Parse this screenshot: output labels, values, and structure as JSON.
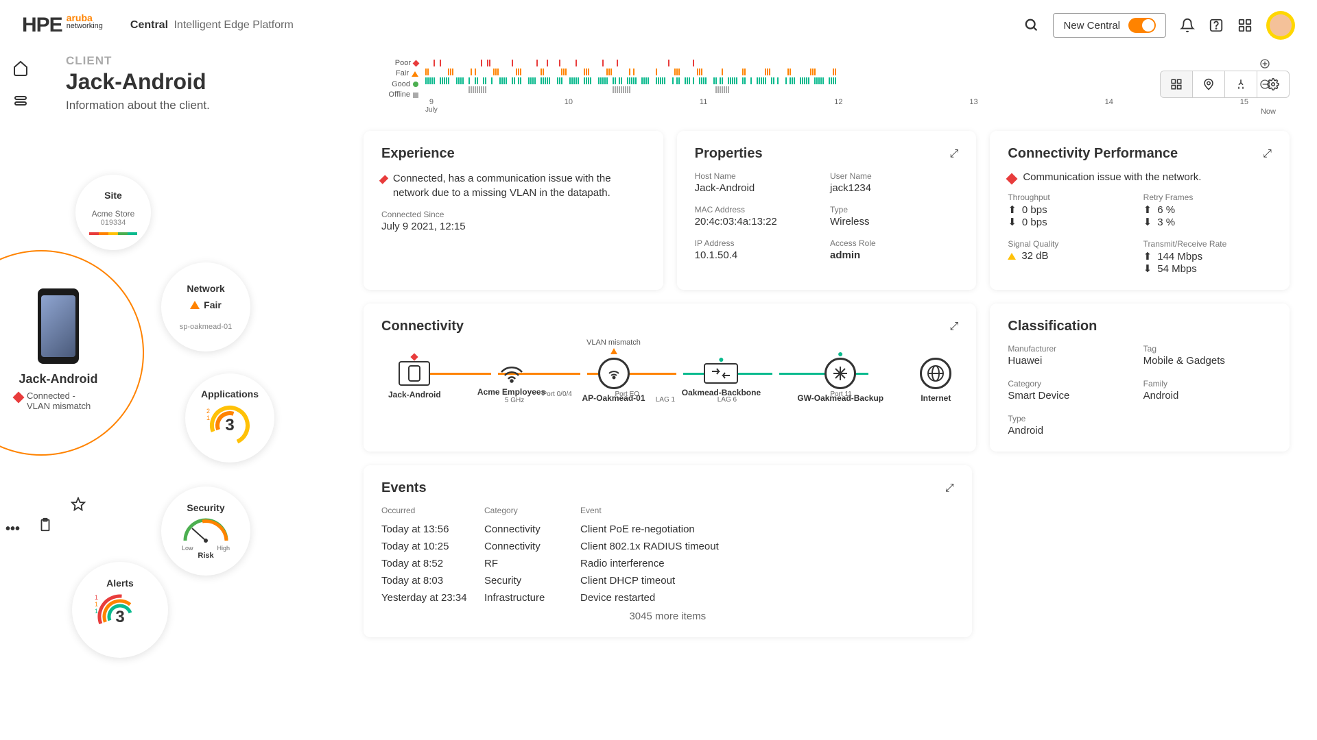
{
  "header": {
    "brand_hpe": "HPE",
    "brand_aruba": "aruba",
    "brand_networking": "networking",
    "central": "Central",
    "platform": "Intelligent Edge Platform",
    "toggle_label": "New Central"
  },
  "page": {
    "breadcrumb": "CLIENT",
    "title": "Jack-Android",
    "subtitle": "Information about the client."
  },
  "device": {
    "name": "Jack-Android",
    "status": "Connected - VLAN mismatch"
  },
  "satellites": {
    "site": {
      "title": "Site",
      "line1": "Acme Store",
      "line2": "019334"
    },
    "network": {
      "title": "Network",
      "status": "Fair",
      "sub": "sp-oakmead-01"
    },
    "applications": {
      "title": "Applications",
      "count": "3",
      "badge1": "2",
      "badge2": "1"
    },
    "security": {
      "title": "Security",
      "low": "Low",
      "high": "High",
      "risk": "Risk"
    },
    "alerts": {
      "title": "Alerts",
      "count": "3",
      "b1": "1",
      "b2": "1",
      "b3": "1"
    }
  },
  "timeline": {
    "poor": "Poor",
    "fair": "Fair",
    "good": "Good",
    "offline": "Offline",
    "ticks": [
      "9",
      "10",
      "11",
      "12",
      "13",
      "14",
      "15"
    ],
    "month": "July",
    "now": "Now"
  },
  "experience": {
    "title": "Experience",
    "status": "Connected, has a communication issue with the network due to a missing VLAN in the datapath.",
    "connected_label": "Connected Since",
    "connected_val": "July 9 2021, 12:15"
  },
  "properties": {
    "title": "Properties",
    "host_label": "Host Name",
    "host_val": "Jack-Android",
    "user_label": "User Name",
    "user_val": "jack1234",
    "mac_label": "MAC Address",
    "mac_val": "20:4c:03:4a:13:22",
    "type_label": "Type",
    "type_val": "Wireless",
    "ip_label": "IP Address",
    "ip_val": "10.1.50.4",
    "role_label": "Access Role",
    "role_val": "admin"
  },
  "conn_perf": {
    "title": "Connectivity Performance",
    "status": "Communication issue with the network.",
    "throughput_label": "Throughput",
    "throughput_up": "0 bps",
    "throughput_down": "0 bps",
    "retry_label": "Retry Frames",
    "retry_up": "6 %",
    "retry_down": "3 %",
    "signal_label": "Signal Quality",
    "signal_val": "32 dB",
    "tx_label": "Transmit/Receive Rate",
    "tx_up": "144 Mbps",
    "tx_down": "54 Mbps"
  },
  "connectivity": {
    "title": "Connectivity",
    "vlan_warn": "VLAN mismatch",
    "ghz": "5 GHz",
    "port_eo": "Port EO",
    "port_004": "Port 0/0/4",
    "lag6": "LAG 6",
    "lag1": "LAG 1",
    "port11": "Port 11",
    "nodes": {
      "client": "Jack-Android",
      "ssid": "Acme Employees",
      "ap": "AP-Oakmead-01",
      "switch": "Oakmead-Backbone",
      "gw": "GW-Oakmead-Backup",
      "internet": "Internet"
    }
  },
  "classification": {
    "title": "Classification",
    "mfr_label": "Manufacturer",
    "mfr_val": "Huawei",
    "tag_label": "Tag",
    "tag_val": "Mobile & Gadgets",
    "cat_label": "Category",
    "cat_val": "Smart Device",
    "fam_label": "Family",
    "fam_val": "Android",
    "type_label": "Type",
    "type_val": "Android"
  },
  "events": {
    "title": "Events",
    "h1": "Occurred",
    "h2": "Category",
    "h3": "Event",
    "rows": [
      {
        "t": "Today at 13:56",
        "c": "Connectivity",
        "e": "Client PoE re-negotiation"
      },
      {
        "t": "Today at 10:25",
        "c": "Connectivity",
        "e": "Client 802.1x RADIUS timeout"
      },
      {
        "t": "Today at 8:52",
        "c": "RF",
        "e": "Radio interference"
      },
      {
        "t": "Today at 8:03",
        "c": "Security",
        "e": "Client DHCP timeout"
      },
      {
        "t": "Yesterday at 23:34",
        "c": "Infrastructure",
        "e": "Device restarted"
      }
    ],
    "more": "3045 more items"
  },
  "colors": {
    "accent": "#ff8300",
    "red": "#e83c3c",
    "orange": "#ff8300",
    "yellow": "#ffc107",
    "green": "#4caf50",
    "teal": "#0aba8e",
    "gray": "#aaaaaa"
  }
}
